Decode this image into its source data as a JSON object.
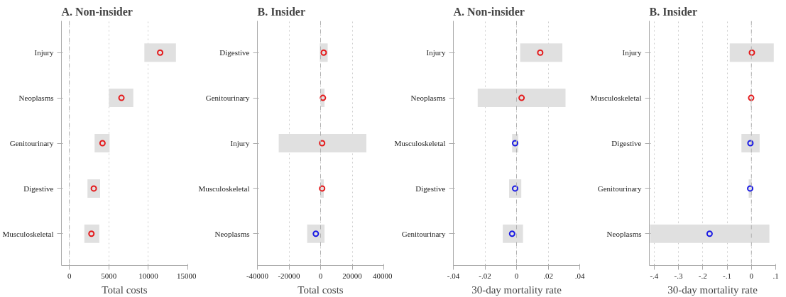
{
  "chart_data": [
    {
      "type": "scatter",
      "orientation": "horizontal",
      "title": "A. Non-insider",
      "xlabel": "Total costs",
      "marker": "circle",
      "grid": "x",
      "categories": [
        "Injury",
        "Neoplasms",
        "Genitourinary",
        "Digestive",
        "Musculoskeletal"
      ],
      "values": [
        11500,
        6600,
        4200,
        3100,
        2800
      ],
      "errors": [
        [
          9500,
          13500
        ],
        [
          5000,
          8100
        ],
        [
          3200,
          5100
        ],
        [
          2300,
          3900
        ],
        [
          1900,
          3800
        ]
      ],
      "colors": [
        "#e41a1c",
        "#e41a1c",
        "#e41a1c",
        "#e41a1c",
        "#e41a1c"
      ],
      "xlim": [
        -1000,
        15000
      ],
      "xticks": [
        0,
        5000,
        10000,
        15000
      ],
      "ref_lines": [
        {
          "axis": "x",
          "value": 0,
          "line_style": "dashed",
          "color": "#b0b0b0"
        }
      ]
    },
    {
      "type": "scatter",
      "orientation": "horizontal",
      "title": "B. Insider",
      "xlabel": "Total costs",
      "marker": "circle",
      "grid": "x",
      "categories": [
        "Digestive",
        "Genitourinary",
        "Injury",
        "Musculoskeletal",
        "Neoplasms"
      ],
      "values": [
        2000,
        1500,
        1000,
        1000,
        -3000
      ],
      "errors": [
        [
          -500,
          4500
        ],
        [
          0,
          2500
        ],
        [
          -26500,
          29000
        ],
        [
          0,
          2000
        ],
        [
          -8500,
          2500
        ]
      ],
      "colors": [
        "#e41a1c",
        "#e41a1c",
        "#e41a1c",
        "#e41a1c",
        "#1a1ae4"
      ],
      "xlim": [
        -40000,
        40000
      ],
      "xticks": [
        -40000,
        -20000,
        0,
        20000,
        40000
      ],
      "ref_lines": [
        {
          "axis": "x",
          "value": 0,
          "line_style": "dashed",
          "color": "#b0b0b0"
        }
      ]
    },
    {
      "type": "scatter",
      "orientation": "horizontal",
      "title": "A. Non-insider",
      "xlabel": "30-day mortality rate",
      "marker": "circle",
      "grid": "x",
      "categories": [
        "Injury",
        "Neoplasms",
        "Musculoskeletal",
        "Digestive",
        "Genitourinary"
      ],
      "values": [
        0.015,
        0.0032,
        -0.0009,
        -0.0009,
        -0.0028
      ],
      "errors": [
        [
          0.0023,
          0.029
        ],
        [
          -0.0246,
          0.031
        ],
        [
          -0.0028,
          0.0011
        ],
        [
          -0.0047,
          0.003
        ],
        [
          -0.0087,
          0.0041
        ]
      ],
      "colors": [
        "#e41a1c",
        "#e41a1c",
        "#1a1ae4",
        "#1a1ae4",
        "#1a1ae4"
      ],
      "xlim": [
        -0.04,
        0.04
      ],
      "xticks": [
        {
          "value": -0.04,
          "label": "-.04"
        },
        {
          "value": -0.02,
          "label": "-.02"
        },
        0,
        {
          "value": 0.02,
          "label": ".02"
        },
        {
          "value": 0.04,
          "label": ".04"
        }
      ],
      "ref_lines": [
        {
          "axis": "x",
          "value": 0,
          "line_style": "dashed",
          "color": "#b0b0b0"
        }
      ]
    },
    {
      "type": "scatter",
      "orientation": "horizontal",
      "title": "B. Insider",
      "xlabel": "30-day mortality rate",
      "marker": "circle",
      "grid": "x",
      "categories": [
        "Injury",
        "Musculoskeletal",
        "Digestive",
        "Genitourinary",
        "Neoplasms"
      ],
      "values": [
        0.002,
        -0.001,
        -0.004,
        -0.005,
        -0.172
      ],
      "errors": [
        [
          -0.089,
          0.092
        ],
        [
          -0.004,
          0.001
        ],
        [
          -0.041,
          0.034
        ],
        [
          -0.011,
          0.001
        ],
        [
          -0.417,
          0.074
        ]
      ],
      "colors": [
        "#e41a1c",
        "#e41a1c",
        "#1a1ae4",
        "#1a1ae4",
        "#1a1ae4"
      ],
      "xlim": [
        -0.42,
        0.1
      ],
      "xticks": [
        {
          "value": -0.4,
          "label": "-.4"
        },
        {
          "value": -0.3,
          "label": "-.3"
        },
        {
          "value": -0.2,
          "label": "-.2"
        },
        {
          "value": -0.1,
          "label": "-.1"
        },
        0,
        {
          "value": 0.1,
          "label": ".1"
        }
      ],
      "ref_lines": [
        {
          "axis": "x",
          "value": 0,
          "line_style": "dashed",
          "color": "#b0b0b0"
        }
      ]
    }
  ]
}
